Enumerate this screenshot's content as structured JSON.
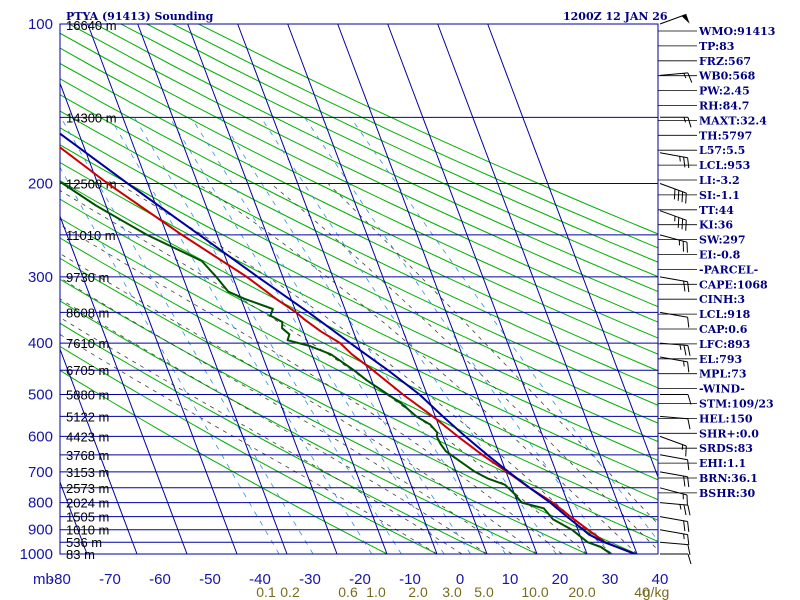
{
  "chart_data": {
    "type": "line",
    "title": "PTYA (91413) Sounding",
    "valid_time": "1200Z 12 JAN 26",
    "xaxis": {
      "unit_label": "mb",
      "temperature_ticks": [
        "-80",
        "-70",
        "-60",
        "-50",
        "-40",
        "-30",
        "-20",
        "-10",
        "0",
        "10",
        "20",
        "30",
        "40"
      ],
      "xlim": [
        -80,
        40
      ]
    },
    "yaxis": {
      "pressure_ticks": [
        "100",
        "200",
        "300",
        "400",
        "500",
        "600",
        "700",
        "800",
        "900",
        "1000"
      ],
      "ylim": [
        100,
        1000
      ]
    },
    "height_labels": [
      {
        "p": 100,
        "text": "16640 m"
      },
      {
        "p": 150,
        "text": "14300 m"
      },
      {
        "p": 200,
        "text": "12500 m"
      },
      {
        "p": 250,
        "text": "11010 m"
      },
      {
        "p": 300,
        "text": "9730 m"
      },
      {
        "p": 350,
        "text": "8608 m"
      },
      {
        "p": 400,
        "text": "7610 m"
      },
      {
        "p": 450,
        "text": "6705 m"
      },
      {
        "p": 500,
        "text": "5880 m"
      },
      {
        "p": 550,
        "text": "5122 m"
      },
      {
        "p": 600,
        "text": "4423 m"
      },
      {
        "p": 650,
        "text": "3768 m"
      },
      {
        "p": 700,
        "text": "3153 m"
      },
      {
        "p": 750,
        "text": "2573 m"
      },
      {
        "p": 800,
        "text": "2024 m"
      },
      {
        "p": 850,
        "text": "1505 m"
      },
      {
        "p": 900,
        "text": "1010 m"
      },
      {
        "p": 950,
        "text": "536 m"
      },
      {
        "p": 1000,
        "text": "83 m"
      }
    ],
    "mixing_ratio_labels": [
      "0.1",
      "0.2",
      "0.6",
      "1.0",
      "2.0",
      "3.0",
      "5.0",
      "10.0",
      "20.0",
      "40",
      "g/kg"
    ],
    "series": [
      {
        "name": "Temperature",
        "color": "#cc0000",
        "points": [
          [
            1000,
            29.5
          ],
          [
            950,
            24.5
          ],
          [
            900,
            22.0
          ],
          [
            850,
            19.5
          ],
          [
            800,
            17.0
          ],
          [
            750,
            13.5
          ],
          [
            700,
            10.2
          ],
          [
            650,
            6.5
          ],
          [
            600,
            3.0
          ],
          [
            550,
            -0.5
          ],
          [
            500,
            -4.8
          ],
          [
            450,
            -9.0
          ],
          [
            420,
            -12.0
          ],
          [
            400,
            -13.5
          ],
          [
            380,
            -16.5
          ],
          [
            360,
            -19.0
          ],
          [
            350,
            -20.0
          ],
          [
            330,
            -23.0
          ],
          [
            300,
            -27.2
          ],
          [
            250,
            -37.0
          ],
          [
            200,
            -48.0
          ],
          [
            150,
            -60.5
          ],
          [
            100,
            -80.5
          ]
        ]
      },
      {
        "name": "Dewpoint",
        "color": "#005000",
        "points": [
          [
            1000,
            24.8
          ],
          [
            970,
            23.3
          ],
          [
            950,
            21.0
          ],
          [
            900,
            18.8
          ],
          [
            860,
            15.8
          ],
          [
            820,
            14.8
          ],
          [
            800,
            10.8
          ],
          [
            770,
            10.0
          ],
          [
            740,
            8.8
          ],
          [
            720,
            5.8
          ],
          [
            700,
            3.8
          ],
          [
            660,
            1.0
          ],
          [
            640,
            -0.5
          ],
          [
            620,
            -1.0
          ],
          [
            600,
            -1.2
          ],
          [
            590,
            -0.8
          ],
          [
            570,
            -1.6
          ],
          [
            550,
            -3.8
          ],
          [
            520,
            -5.8
          ],
          [
            500,
            -7.8
          ],
          [
            470,
            -11.0
          ],
          [
            450,
            -12.8
          ],
          [
            420,
            -16.2
          ],
          [
            405,
            -19.8
          ],
          [
            395,
            -23.8
          ],
          [
            385,
            -23.0
          ],
          [
            375,
            -24.0
          ],
          [
            365,
            -23.5
          ],
          [
            355,
            -25.4
          ],
          [
            345,
            -24.4
          ],
          [
            330,
            -29.3
          ],
          [
            320,
            -32.0
          ],
          [
            300,
            -33.3
          ],
          [
            280,
            -35.0
          ],
          [
            250,
            -44.0
          ],
          [
            220,
            -52.0
          ],
          [
            200,
            -57.0
          ],
          [
            180,
            -65.0
          ],
          [
            150,
            -72.0
          ],
          [
            120,
            -80.0
          ],
          [
            105,
            -85.5
          ]
        ]
      },
      {
        "name": "Parcel",
        "color": "#0000a0",
        "points": [
          [
            1000,
            29.7
          ],
          [
            950,
            24.3
          ],
          [
            918,
            21.8
          ],
          [
            893,
            20.8
          ],
          [
            850,
            18.8
          ],
          [
            800,
            16.5
          ],
          [
            750,
            13.5
          ],
          [
            700,
            10.5
          ],
          [
            650,
            7.5
          ],
          [
            600,
            4.5
          ],
          [
            550,
            1.5
          ],
          [
            500,
            -1.5
          ],
          [
            450,
            -6.0
          ],
          [
            400,
            -11.5
          ],
          [
            350,
            -17.5
          ],
          [
            300,
            -25.0
          ],
          [
            250,
            -33.5
          ],
          [
            200,
            -44.0
          ],
          [
            150,
            -57.0
          ],
          [
            100,
            -75.0
          ]
        ]
      }
    ],
    "wind_barbs": [
      {
        "p": 100,
        "dir": 70,
        "spd": 50
      },
      {
        "p": 125,
        "dir": 85,
        "spd": 15
      },
      {
        "p": 150,
        "dir": 90,
        "spd": 15
      },
      {
        "p": 175,
        "dir": 100,
        "spd": 25
      },
      {
        "p": 200,
        "dir": 110,
        "spd": 40
      },
      {
        "p": 225,
        "dir": 110,
        "spd": 35
      },
      {
        "p": 250,
        "dir": 105,
        "spd": 25
      },
      {
        "p": 300,
        "dir": 100,
        "spd": 20
      },
      {
        "p": 350,
        "dir": 100,
        "spd": 10
      },
      {
        "p": 400,
        "dir": 95,
        "spd": 25
      },
      {
        "p": 425,
        "dir": 100,
        "spd": 15
      },
      {
        "p": 500,
        "dir": 90,
        "spd": 10
      },
      {
        "p": 550,
        "dir": 95,
        "spd": 10
      },
      {
        "p": 600,
        "dir": 110,
        "spd": 15
      },
      {
        "p": 650,
        "dir": 100,
        "spd": 10
      },
      {
        "p": 700,
        "dir": 100,
        "spd": 20
      },
      {
        "p": 750,
        "dir": 105,
        "spd": 15
      },
      {
        "p": 800,
        "dir": 95,
        "spd": 25
      },
      {
        "p": 850,
        "dir": 100,
        "spd": 20
      },
      {
        "p": 900,
        "dir": 100,
        "spd": 15
      },
      {
        "p": 950,
        "dir": 95,
        "spd": 10
      },
      {
        "p": 1000,
        "dir": 90,
        "spd": 10
      }
    ],
    "indices": [
      "WMO:91413",
      "TP:83",
      "FRZ:567",
      "WB0:568",
      "PW:2.45",
      "RH:84.7",
      "MAXT:32.4",
      "TH:5797",
      "L57:5.5",
      "LCL:953",
      "LI:-3.2",
      "SI:-1.1",
      "TT:44",
      "KI:36",
      "SW:297",
      "EI:-0.8",
      "-PARCEL-",
      "CAPE:1068",
      "CINH:3",
      "LCL:918",
      "CAP:0.6",
      "LFC:893",
      "EL:793",
      "MPL:73",
      "-WIND-",
      "STM:109/23",
      "HEL:150",
      "SHR+:0.0",
      "SRDS:83",
      "EHI:1.1",
      "BRN:36.1",
      "BSHR:30"
    ]
  },
  "colors": {
    "grid": "#0000a0",
    "dry_adiabat": "#00b000",
    "moist_adiabat": "#404040",
    "mixing_ratio": "#3090e0",
    "temperature": "#cc0000",
    "dewpoint": "#005000",
    "parcel": "#0000a0"
  }
}
